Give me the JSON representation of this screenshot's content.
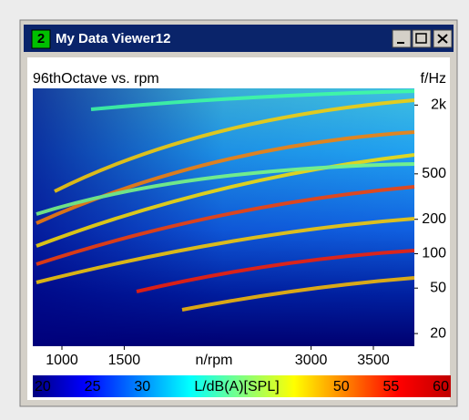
{
  "window": {
    "badge": "2",
    "title": "My Data Viewer12"
  },
  "chart_data": {
    "type": "heatmap",
    "title": "96thOctave vs. rpm",
    "x_label": "n/rpm",
    "y_label": "f/Hz",
    "xlim": [
      766,
      3829
    ],
    "xticks": [
      1000,
      1500,
      3000,
      3500
    ],
    "ylim": [
      15.5,
      2800
    ],
    "y_scale": "log",
    "yticks": [
      {
        "value": 2000,
        "label": "2k"
      },
      500,
      200,
      100,
      50,
      20
    ],
    "colorbar": {
      "label": "L/dB(A)[SPL]",
      "lim": [
        19,
        61
      ],
      "ticks": [
        20,
        25,
        30,
        50,
        55,
        60
      ],
      "colors": [
        "#000080",
        "#0000ff",
        "#0080ff",
        "#00ffff",
        "#80ff80",
        "#ffff00",
        "#ff8000",
        "#ff0000",
        "#c00000"
      ]
    }
  }
}
